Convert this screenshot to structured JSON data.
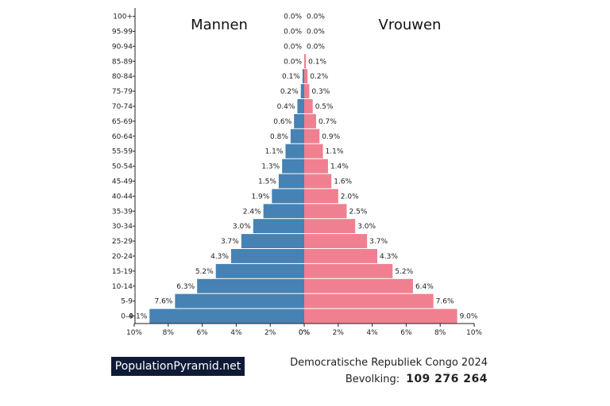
{
  "chart_data": {
    "type": "bar",
    "categories": [
      "0-4",
      "5-9",
      "10-14",
      "15-19",
      "20-24",
      "25-29",
      "30-34",
      "35-39",
      "40-44",
      "45-49",
      "50-54",
      "55-59",
      "60-64",
      "65-69",
      "70-74",
      "75-79",
      "80-84",
      "85-89",
      "90-94",
      "95-99",
      "100+"
    ],
    "series": [
      {
        "name": "Mannen",
        "values": [
          9.1,
          7.6,
          6.3,
          5.2,
          4.3,
          3.7,
          3.0,
          2.4,
          1.9,
          1.5,
          1.3,
          1.1,
          0.8,
          0.6,
          0.4,
          0.2,
          0.1,
          0.0,
          0.0,
          0.0,
          0.0
        ],
        "color": "#4682b4"
      },
      {
        "name": "Vrouwen",
        "values": [
          9.0,
          7.6,
          6.4,
          5.2,
          4.3,
          3.7,
          3.0,
          2.5,
          2.0,
          1.6,
          1.4,
          1.1,
          0.9,
          0.7,
          0.5,
          0.3,
          0.2,
          0.1,
          0.0,
          0.0,
          0.0
        ],
        "color": "#f08090"
      }
    ],
    "value_labels": {
      "Mannen": [
        "9.1%",
        "7.6%",
        "6.3%",
        "5.2%",
        "4.3%",
        "3.7%",
        "3.0%",
        "2.4%",
        "1.9%",
        "1.5%",
        "1.3%",
        "1.1%",
        "0.8%",
        "0.6%",
        "0.4%",
        "0.2%",
        "0.1%",
        "0.0%",
        "0.0%",
        "0.0%",
        "0.0%"
      ],
      "Vrouwen": [
        "9.0%",
        "7.6%",
        "6.4%",
        "5.2%",
        "4.3%",
        "3.7%",
        "3.0%",
        "2.5%",
        "2.0%",
        "1.6%",
        "1.4%",
        "1.1%",
        "0.9%",
        "0.7%",
        "0.5%",
        "0.3%",
        "0.2%",
        "0.1%",
        "0.0%",
        "0.0%",
        "0.0%"
      ]
    },
    "xlim": [
      0,
      10
    ],
    "x_ticks_left": [
      "10%",
      "8%",
      "6%",
      "4%",
      "2%",
      "0%"
    ],
    "x_ticks_right": [
      "0%",
      "2%",
      "4%",
      "6%",
      "8%",
      "10%"
    ],
    "grid": false
  },
  "titles": {
    "left": "Mannen",
    "right": "Vrouwen"
  },
  "footer": {
    "brand": "PopulationPyramid.net",
    "country_year": "Democratische Republiek Congo 2024",
    "population_label": "Bevolking:",
    "population_value": "109 276 264"
  }
}
